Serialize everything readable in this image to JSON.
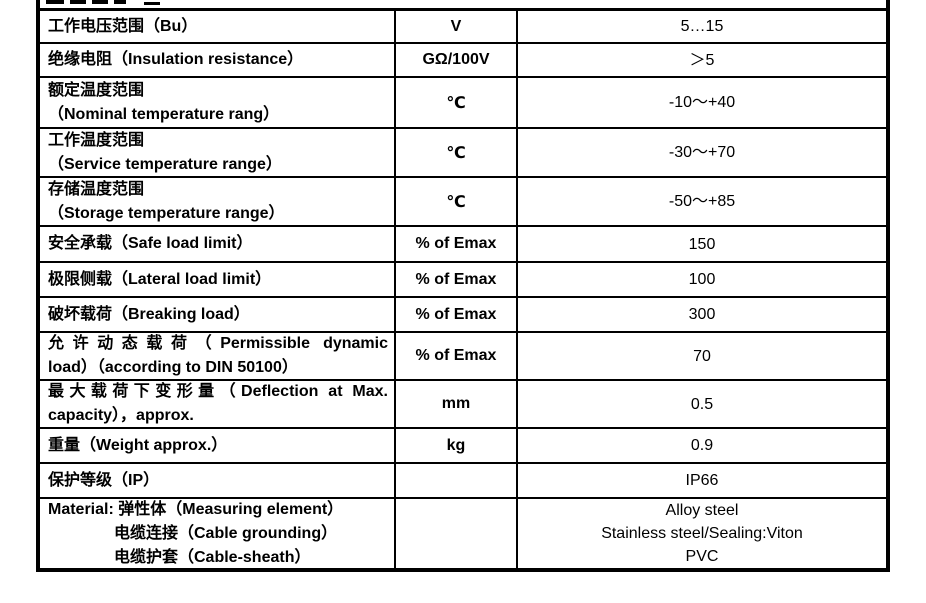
{
  "colors": {
    "background": "#ffffff",
    "border": "#000000",
    "text": "#000000"
  },
  "table": {
    "type": "table",
    "columns": [
      "parameter",
      "unit",
      "value"
    ],
    "top_row_clipped": true,
    "rows": [
      {
        "label_lines": [
          "工作电压范围（Bu）"
        ],
        "unit": "V",
        "value_lines": [
          "5…15"
        ]
      },
      {
        "label_lines": [
          "绝缘电阻（Insulation resistance）"
        ],
        "unit": "GΩ/100V",
        "value_lines": [
          "＞5"
        ]
      },
      {
        "label_lines": [
          "额定温度范围",
          "（Nominal temperature rang）"
        ],
        "unit": "℃",
        "value_lines": [
          "-10～+40"
        ]
      },
      {
        "label_lines": [
          "工作温度范围",
          "（Service temperature range）"
        ],
        "unit": "℃",
        "value_lines": [
          "-30～+70"
        ]
      },
      {
        "label_lines": [
          "存储温度范围",
          "（Storage temperature range）"
        ],
        "unit": "℃",
        "value_lines": [
          "-50～+85"
        ]
      },
      {
        "label_lines": [
          "安全承载（Safe load limit）"
        ],
        "unit": "% of Emax",
        "value_lines": [
          "150"
        ]
      },
      {
        "label_lines": [
          "极限侧载（Lateral load limit）"
        ],
        "unit": "% of Emax",
        "value_lines": [
          "100"
        ]
      },
      {
        "label_lines": [
          "破坏载荷（Breaking load）"
        ],
        "unit": "% of Emax",
        "value_lines": [
          "300"
        ]
      },
      {
        "label_lines": [
          "允许动态载荷（Permissible dynamic",
          "load）（according to DIN 50100）"
        ],
        "unit": "% of Emax",
        "value_lines": [
          "70"
        ],
        "justify_first_line": true
      },
      {
        "label_lines": [
          "最大载荷下变形量（Deflection at Max.",
          "capacity），approx."
        ],
        "unit": "mm",
        "value_lines": [
          "0.5"
        ],
        "justify_first_line": true
      },
      {
        "label_lines": [
          "重量（Weight approx.）"
        ],
        "unit": "kg",
        "value_lines": [
          "0.9"
        ]
      },
      {
        "label_lines": [
          "保护等级（IP）"
        ],
        "unit": "",
        "value_lines": [
          "IP66"
        ]
      },
      {
        "label_lines": [
          "Material: 弹性体（Measuring element）",
          "电缆连接（Cable grounding）",
          "电缆护套（Cable-sheath）"
        ],
        "unit": "",
        "value_lines": [
          "Alloy steel",
          "Stainless steel/Sealing:Viton",
          "PVC"
        ],
        "material_indent": true
      }
    ]
  }
}
